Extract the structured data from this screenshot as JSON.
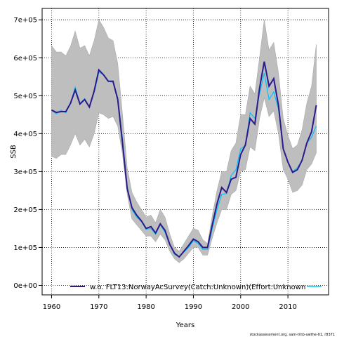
{
  "chart_data": {
    "type": "line",
    "xlabel": "Years",
    "ylabel": "SSB",
    "xlim": [
      1958,
      2018.6
    ],
    "ylim": [
      -25000,
      730000
    ],
    "x_ticks": [
      1960,
      1970,
      1980,
      1990,
      2000,
      2010
    ],
    "y_ticks": [
      0,
      100000,
      200000,
      300000,
      400000,
      500000,
      600000,
      700000
    ],
    "y_tick_labels": [
      "0e+00",
      "1e+05",
      "2e+05",
      "3e+05",
      "4e+05",
      "5e+05",
      "6e+05",
      "7e+05"
    ],
    "grid": true,
    "legend_position": "bottom",
    "legend_label": "w.o. FLT13:NorwayAcSurvey(Catch:Unknown)(Effort:Unknown",
    "footer": "stockassessment.org, sam-tmb-saithe-01, r8371",
    "colors": {
      "band": "#bebebe",
      "band_edge": "#a8a8a8",
      "baseline": "#00c3ff",
      "alternative": "#2a1a8c"
    },
    "x": [
      1960,
      1961,
      1962,
      1963,
      1964,
      1965,
      1966,
      1967,
      1968,
      1969,
      1970,
      1971,
      1972,
      1973,
      1974,
      1975,
      1976,
      1977,
      1978,
      1979,
      1980,
      1981,
      1982,
      1983,
      1984,
      1985,
      1986,
      1987,
      1988,
      1989,
      1990,
      1991,
      1992,
      1993,
      1994,
      1995,
      1996,
      1997,
      1998,
      1999,
      2000,
      2001,
      2002,
      2003,
      2004,
      2005,
      2006,
      2007,
      2008,
      2009,
      2010,
      2011,
      2012,
      2013,
      2014,
      2015,
      2016
    ],
    "band_upper": [
      632000,
      615000,
      615000,
      605000,
      630000,
      670000,
      625000,
      632000,
      605000,
      645000,
      700000,
      680000,
      652000,
      645000,
      585000,
      450000,
      310000,
      245000,
      220000,
      200000,
      180000,
      185000,
      165000,
      200000,
      180000,
      135000,
      100000,
      90000,
      110000,
      130000,
      150000,
      145000,
      120000,
      110000,
      185000,
      250000,
      300000,
      300000,
      355000,
      375000,
      450000,
      450000,
      525000,
      505000,
      600000,
      700000,
      620000,
      640000,
      560000,
      440000,
      395000,
      360000,
      370000,
      410000,
      480000,
      525000,
      635000
    ],
    "band_lower": [
      340000,
      335000,
      345000,
      345000,
      370000,
      400000,
      370000,
      385000,
      365000,
      400000,
      455000,
      450000,
      440000,
      445000,
      420000,
      345000,
      240000,
      175000,
      160000,
      145000,
      130000,
      130000,
      115000,
      135000,
      120000,
      90000,
      70000,
      60000,
      70000,
      85000,
      100000,
      100000,
      80000,
      80000,
      125000,
      165000,
      200000,
      200000,
      240000,
      250000,
      300000,
      305000,
      365000,
      355000,
      440000,
      495000,
      445000,
      460000,
      400000,
      305000,
      280000,
      245000,
      250000,
      265000,
      305000,
      320000,
      350000
    ],
    "series": [
      {
        "values": [
          462000,
          452000,
          462000,
          455000,
          480000,
          522000,
          480000,
          492000,
          470000,
          508000,
          562000,
          555000,
          538000,
          535000,
          495000,
          385000,
          260000,
          200000,
          180000,
          168000,
          148000,
          150000,
          135000,
          160000,
          140000,
          108000,
          82000,
          75000,
          88000,
          100000,
          118000,
          110000,
          95000,
          95000,
          150000,
          200000,
          240000,
          242000,
          290000,
          305000,
          360000,
          368000,
          455000,
          440000,
          505000,
          560000,
          490000,
          510000,
          465000,
          360000,
          325000,
          300000,
          310000,
          330000,
          375000,
          390000,
          420000
        ]
      },
      {
        "values": [
          462000,
          456000,
          458000,
          458000,
          480000,
          515000,
          478000,
          490000,
          470000,
          512000,
          568000,
          555000,
          538000,
          538000,
          490000,
          375000,
          255000,
          205000,
          185000,
          170000,
          150000,
          155000,
          138000,
          162000,
          145000,
          108000,
          85000,
          75000,
          90000,
          105000,
          122000,
          115000,
          100000,
          100000,
          160000,
          215000,
          258000,
          245000,
          280000,
          285000,
          345000,
          370000,
          440000,
          425000,
          520000,
          590000,
          525000,
          545000,
          475000,
          360000,
          325000,
          298000,
          305000,
          330000,
          375000,
          405000,
          475000
        ]
      }
    ]
  }
}
